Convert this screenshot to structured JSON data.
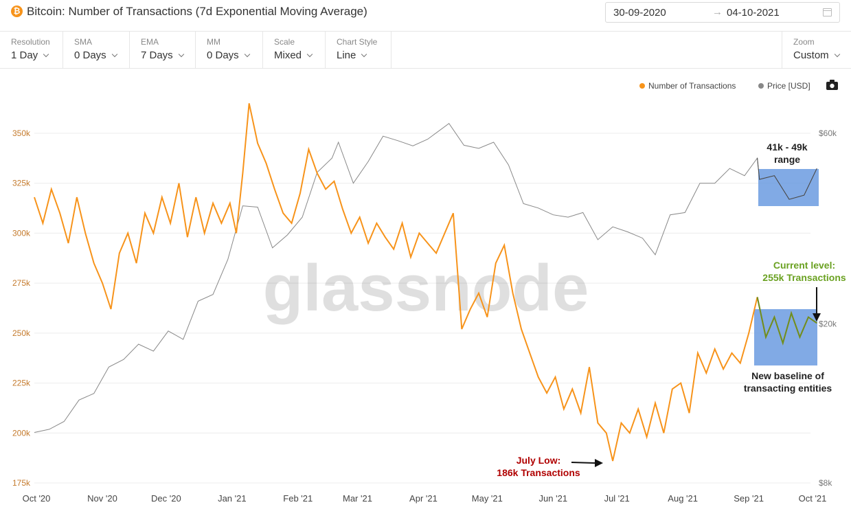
{
  "header": {
    "title": "Bitcoin: Number of Transactions (7d Exponential Moving Average)",
    "logo_glyph": "₿",
    "date_start": "30-09-2020",
    "date_arrow": "→",
    "date_end": "04-10-2021",
    "calendar_icon": "calendar-icon"
  },
  "toolbar": {
    "items": [
      {
        "label": "Resolution",
        "value": "1 Day"
      },
      {
        "label": "SMA",
        "value": "0 Days"
      },
      {
        "label": "EMA",
        "value": "7 Days"
      },
      {
        "label": "MM",
        "value": "0 Days"
      },
      {
        "label": "Scale",
        "value": "Mixed"
      },
      {
        "label": "Chart Style",
        "value": "Line"
      }
    ],
    "zoom": {
      "label": "Zoom",
      "value": "Custom"
    }
  },
  "legend": {
    "tx_label": "Number of Transactions",
    "price_label": "Price [USD]",
    "camera_icon": "camera-icon"
  },
  "watermark": "glassnode",
  "annotations": {
    "range_line1": "41k - 49k",
    "range_line2": "range",
    "current_line1": "Current level:",
    "current_line2": "255k Transactions",
    "baseline_line1": "New baseline of",
    "baseline_line2": "transacting entities",
    "low_line1": "July Low:",
    "low_line2": "186k Transactions"
  },
  "colors": {
    "transactions": "#f7931a",
    "price": "#888888",
    "highlight_box": "#6b9be0",
    "highlight_line": "#6b8e23",
    "annotation_red": "#b00000",
    "annotation_green": "#6aa121"
  },
  "chart_data": {
    "type": "line",
    "x_axis": {
      "ticks": [
        "Oct '20",
        "Nov '20",
        "Dec '20",
        "Jan '21",
        "Feb '21",
        "Mar '21",
        "Apr '21",
        "May '21",
        "Jun '21",
        "Jul '21",
        "Aug '21",
        "Sep '21",
        "Oct '21"
      ]
    },
    "y_axis_left": {
      "ticks": [
        "350k",
        "325k",
        "300k",
        "275k",
        "250k",
        "225k",
        "200k",
        "175k"
      ],
      "range": [
        175000,
        350000
      ]
    },
    "y_axis_right": {
      "scale": "log",
      "ticks": [
        "$60k",
        "$20k",
        "$8k"
      ]
    },
    "grid": "horizontal",
    "legend_position": "top-right",
    "series": [
      {
        "name": "Number of Transactions",
        "axis": "left",
        "points": [
          [
            "2020-10-01",
            318000
          ],
          [
            "2020-10-05",
            305000
          ],
          [
            "2020-10-09",
            322000
          ],
          [
            "2020-10-13",
            310000
          ],
          [
            "2020-10-17",
            295000
          ],
          [
            "2020-10-21",
            318000
          ],
          [
            "2020-10-25",
            300000
          ],
          [
            "2020-10-29",
            285000
          ],
          [
            "2020-11-02",
            275000
          ],
          [
            "2020-11-06",
            262000
          ],
          [
            "2020-11-10",
            290000
          ],
          [
            "2020-11-14",
            300000
          ],
          [
            "2020-11-18",
            285000
          ],
          [
            "2020-11-22",
            310000
          ],
          [
            "2020-11-26",
            300000
          ],
          [
            "2020-11-30",
            318000
          ],
          [
            "2020-12-04",
            305000
          ],
          [
            "2020-12-08",
            325000
          ],
          [
            "2020-12-12",
            298000
          ],
          [
            "2020-12-16",
            318000
          ],
          [
            "2020-12-20",
            300000
          ],
          [
            "2020-12-24",
            315000
          ],
          [
            "2020-12-28",
            305000
          ],
          [
            "2021-01-01",
            315000
          ],
          [
            "2021-01-04",
            300000
          ],
          [
            "2021-01-07",
            330000
          ],
          [
            "2021-01-10",
            365000
          ],
          [
            "2021-01-14",
            345000
          ],
          [
            "2021-01-18",
            335000
          ],
          [
            "2021-01-22",
            322000
          ],
          [
            "2021-01-26",
            310000
          ],
          [
            "2021-01-30",
            305000
          ],
          [
            "2021-02-03",
            320000
          ],
          [
            "2021-02-07",
            342000
          ],
          [
            "2021-02-11",
            330000
          ],
          [
            "2021-02-15",
            322000
          ],
          [
            "2021-02-19",
            326000
          ],
          [
            "2021-02-23",
            312000
          ],
          [
            "2021-02-27",
            300000
          ],
          [
            "2021-03-03",
            308000
          ],
          [
            "2021-03-07",
            295000
          ],
          [
            "2021-03-11",
            305000
          ],
          [
            "2021-03-15",
            298000
          ],
          [
            "2021-03-19",
            292000
          ],
          [
            "2021-03-23",
            305000
          ],
          [
            "2021-03-27",
            288000
          ],
          [
            "2021-03-31",
            300000
          ],
          [
            "2021-04-04",
            295000
          ],
          [
            "2021-04-08",
            290000
          ],
          [
            "2021-04-12",
            300000
          ],
          [
            "2021-04-16",
            310000
          ],
          [
            "2021-04-20",
            252000
          ],
          [
            "2021-04-24",
            262000
          ],
          [
            "2021-04-28",
            270000
          ],
          [
            "2021-05-02",
            258000
          ],
          [
            "2021-05-06",
            285000
          ],
          [
            "2021-05-10",
            294000
          ],
          [
            "2021-05-14",
            270000
          ],
          [
            "2021-05-18",
            252000
          ],
          [
            "2021-05-22",
            240000
          ],
          [
            "2021-05-26",
            228000
          ],
          [
            "2021-05-30",
            220000
          ],
          [
            "2021-06-03",
            228000
          ],
          [
            "2021-06-07",
            212000
          ],
          [
            "2021-06-11",
            222000
          ],
          [
            "2021-06-15",
            210000
          ],
          [
            "2021-06-19",
            233000
          ],
          [
            "2021-06-23",
            205000
          ],
          [
            "2021-06-27",
            200000
          ],
          [
            "2021-06-30",
            186000
          ],
          [
            "2021-07-04",
            205000
          ],
          [
            "2021-07-08",
            200000
          ],
          [
            "2021-07-12",
            212000
          ],
          [
            "2021-07-16",
            198000
          ],
          [
            "2021-07-20",
            215000
          ],
          [
            "2021-07-24",
            200000
          ],
          [
            "2021-07-28",
            222000
          ],
          [
            "2021-08-01",
            225000
          ],
          [
            "2021-08-05",
            210000
          ],
          [
            "2021-08-09",
            240000
          ],
          [
            "2021-08-13",
            230000
          ],
          [
            "2021-08-17",
            242000
          ],
          [
            "2021-08-21",
            232000
          ],
          [
            "2021-08-25",
            240000
          ],
          [
            "2021-08-29",
            235000
          ],
          [
            "2021-09-02",
            250000
          ],
          [
            "2021-09-06",
            268000
          ],
          [
            "2021-09-10",
            248000
          ],
          [
            "2021-09-14",
            258000
          ],
          [
            "2021-09-18",
            245000
          ],
          [
            "2021-09-22",
            260000
          ],
          [
            "2021-09-26",
            248000
          ],
          [
            "2021-09-30",
            258000
          ],
          [
            "2021-10-04",
            255000
          ]
        ]
      },
      {
        "name": "Price [USD]",
        "axis": "right",
        "points": [
          [
            "2020-10-01",
            10700
          ],
          [
            "2020-10-08",
            10900
          ],
          [
            "2020-10-15",
            11400
          ],
          [
            "2020-10-22",
            12900
          ],
          [
            "2020-10-29",
            13400
          ],
          [
            "2020-11-05",
            15600
          ],
          [
            "2020-11-12",
            16300
          ],
          [
            "2020-11-19",
            17800
          ],
          [
            "2020-11-26",
            17100
          ],
          [
            "2020-12-03",
            19200
          ],
          [
            "2020-12-10",
            18300
          ],
          [
            "2020-12-17",
            22800
          ],
          [
            "2020-12-24",
            23700
          ],
          [
            "2020-12-31",
            29000
          ],
          [
            "2021-01-07",
            39500
          ],
          [
            "2021-01-14",
            39200
          ],
          [
            "2021-01-21",
            31000
          ],
          [
            "2021-01-28",
            33400
          ],
          [
            "2021-02-04",
            37000
          ],
          [
            "2021-02-11",
            47900
          ],
          [
            "2021-02-18",
            52000
          ],
          [
            "2021-02-21",
            57000
          ],
          [
            "2021-02-28",
            45000
          ],
          [
            "2021-03-07",
            51000
          ],
          [
            "2021-03-14",
            59000
          ],
          [
            "2021-03-21",
            57500
          ],
          [
            "2021-03-28",
            55800
          ],
          [
            "2021-04-04",
            58000
          ],
          [
            "2021-04-14",
            63500
          ],
          [
            "2021-04-21",
            56000
          ],
          [
            "2021-04-28",
            55000
          ],
          [
            "2021-05-05",
            57000
          ],
          [
            "2021-05-12",
            50000
          ],
          [
            "2021-05-19",
            40000
          ],
          [
            "2021-05-26",
            39000
          ],
          [
            "2021-06-02",
            37500
          ],
          [
            "2021-06-09",
            37000
          ],
          [
            "2021-06-16",
            38000
          ],
          [
            "2021-06-23",
            32500
          ],
          [
            "2021-06-30",
            35000
          ],
          [
            "2021-07-07",
            34000
          ],
          [
            "2021-07-14",
            32800
          ],
          [
            "2021-07-20",
            29800
          ],
          [
            "2021-07-27",
            37500
          ],
          [
            "2021-08-03",
            38000
          ],
          [
            "2021-08-10",
            45000
          ],
          [
            "2021-08-17",
            45000
          ],
          [
            "2021-08-24",
            49000
          ],
          [
            "2021-08-31",
            47000
          ],
          [
            "2021-09-06",
            52000
          ],
          [
            "2021-09-07",
            46000
          ],
          [
            "2021-09-14",
            47000
          ],
          [
            "2021-09-21",
            41000
          ],
          [
            "2021-09-28",
            42000
          ],
          [
            "2021-10-04",
            49000
          ]
        ]
      }
    ]
  }
}
